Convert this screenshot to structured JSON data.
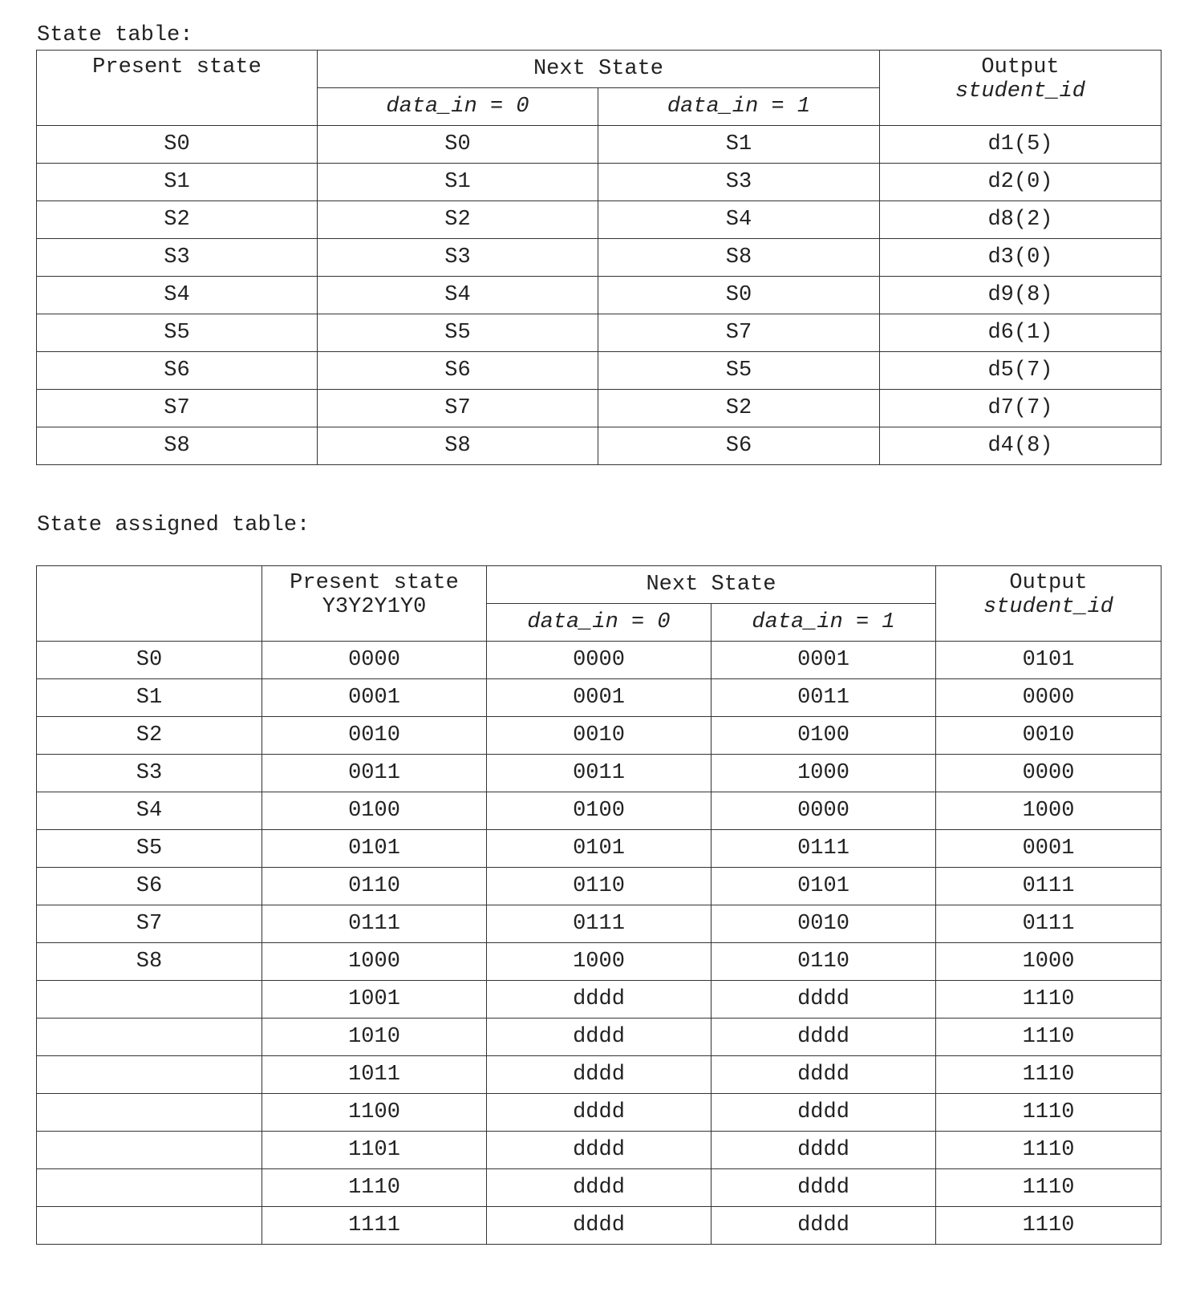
{
  "state_table": {
    "caption": "State table:",
    "headers": {
      "present_state": "Present state",
      "next_state": "Next State",
      "input0": "data_in = 0",
      "input1": "data_in = 1",
      "output": "Output",
      "output_sub": "student_id"
    },
    "rows": [
      [
        "S0",
        "S0",
        "S1",
        "d1(5)"
      ],
      [
        "S1",
        "S1",
        "S3",
        "d2(0)"
      ],
      [
        "S2",
        "S2",
        "S4",
        "d8(2)"
      ],
      [
        "S3",
        "S3",
        "S8",
        "d3(0)"
      ],
      [
        "S4",
        "S4",
        "S0",
        "d9(8)"
      ],
      [
        "S5",
        "S5",
        "S7",
        "d6(1)"
      ],
      [
        "S6",
        "S6",
        "S5",
        "d5(7)"
      ],
      [
        "S7",
        "S7",
        "S2",
        "d7(7)"
      ],
      [
        "S8",
        "S8",
        "S6",
        "d4(8)"
      ]
    ]
  },
  "assigned_table": {
    "caption": "State assigned table:",
    "headers": {
      "state": "",
      "present_state": "Present state",
      "present_state_sub": "Y3Y2Y1Y0",
      "next_state": "Next State",
      "input0": "data_in = 0",
      "input1": "data_in = 1",
      "output": "Output",
      "output_sub": "student_id"
    },
    "rows": [
      [
        "S0",
        "0000",
        "0000",
        "0001",
        "0101"
      ],
      [
        "S1",
        "0001",
        "0001",
        "0011",
        "0000"
      ],
      [
        "S2",
        "0010",
        "0010",
        "0100",
        "0010"
      ],
      [
        "S3",
        "0011",
        "0011",
        "1000",
        "0000"
      ],
      [
        "S4",
        "0100",
        "0100",
        "0000",
        "1000"
      ],
      [
        "S5",
        "0101",
        "0101",
        "0111",
        "0001"
      ],
      [
        "S6",
        "0110",
        "0110",
        "0101",
        "0111"
      ],
      [
        "S7",
        "0111",
        "0111",
        "0010",
        "0111"
      ],
      [
        "S8",
        "1000",
        "1000",
        "0110",
        "1000"
      ],
      [
        "",
        "1001",
        "dddd",
        "dddd",
        "1110"
      ],
      [
        "",
        "1010",
        "dddd",
        "dddd",
        "1110"
      ],
      [
        "",
        "1011",
        "dddd",
        "dddd",
        "1110"
      ],
      [
        "",
        "1100",
        "dddd",
        "dddd",
        "1110"
      ],
      [
        "",
        "1101",
        "dddd",
        "dddd",
        "1110"
      ],
      [
        "",
        "1110",
        "dddd",
        "dddd",
        "1110"
      ],
      [
        "",
        "1111",
        "dddd",
        "dddd",
        "1110"
      ]
    ]
  }
}
